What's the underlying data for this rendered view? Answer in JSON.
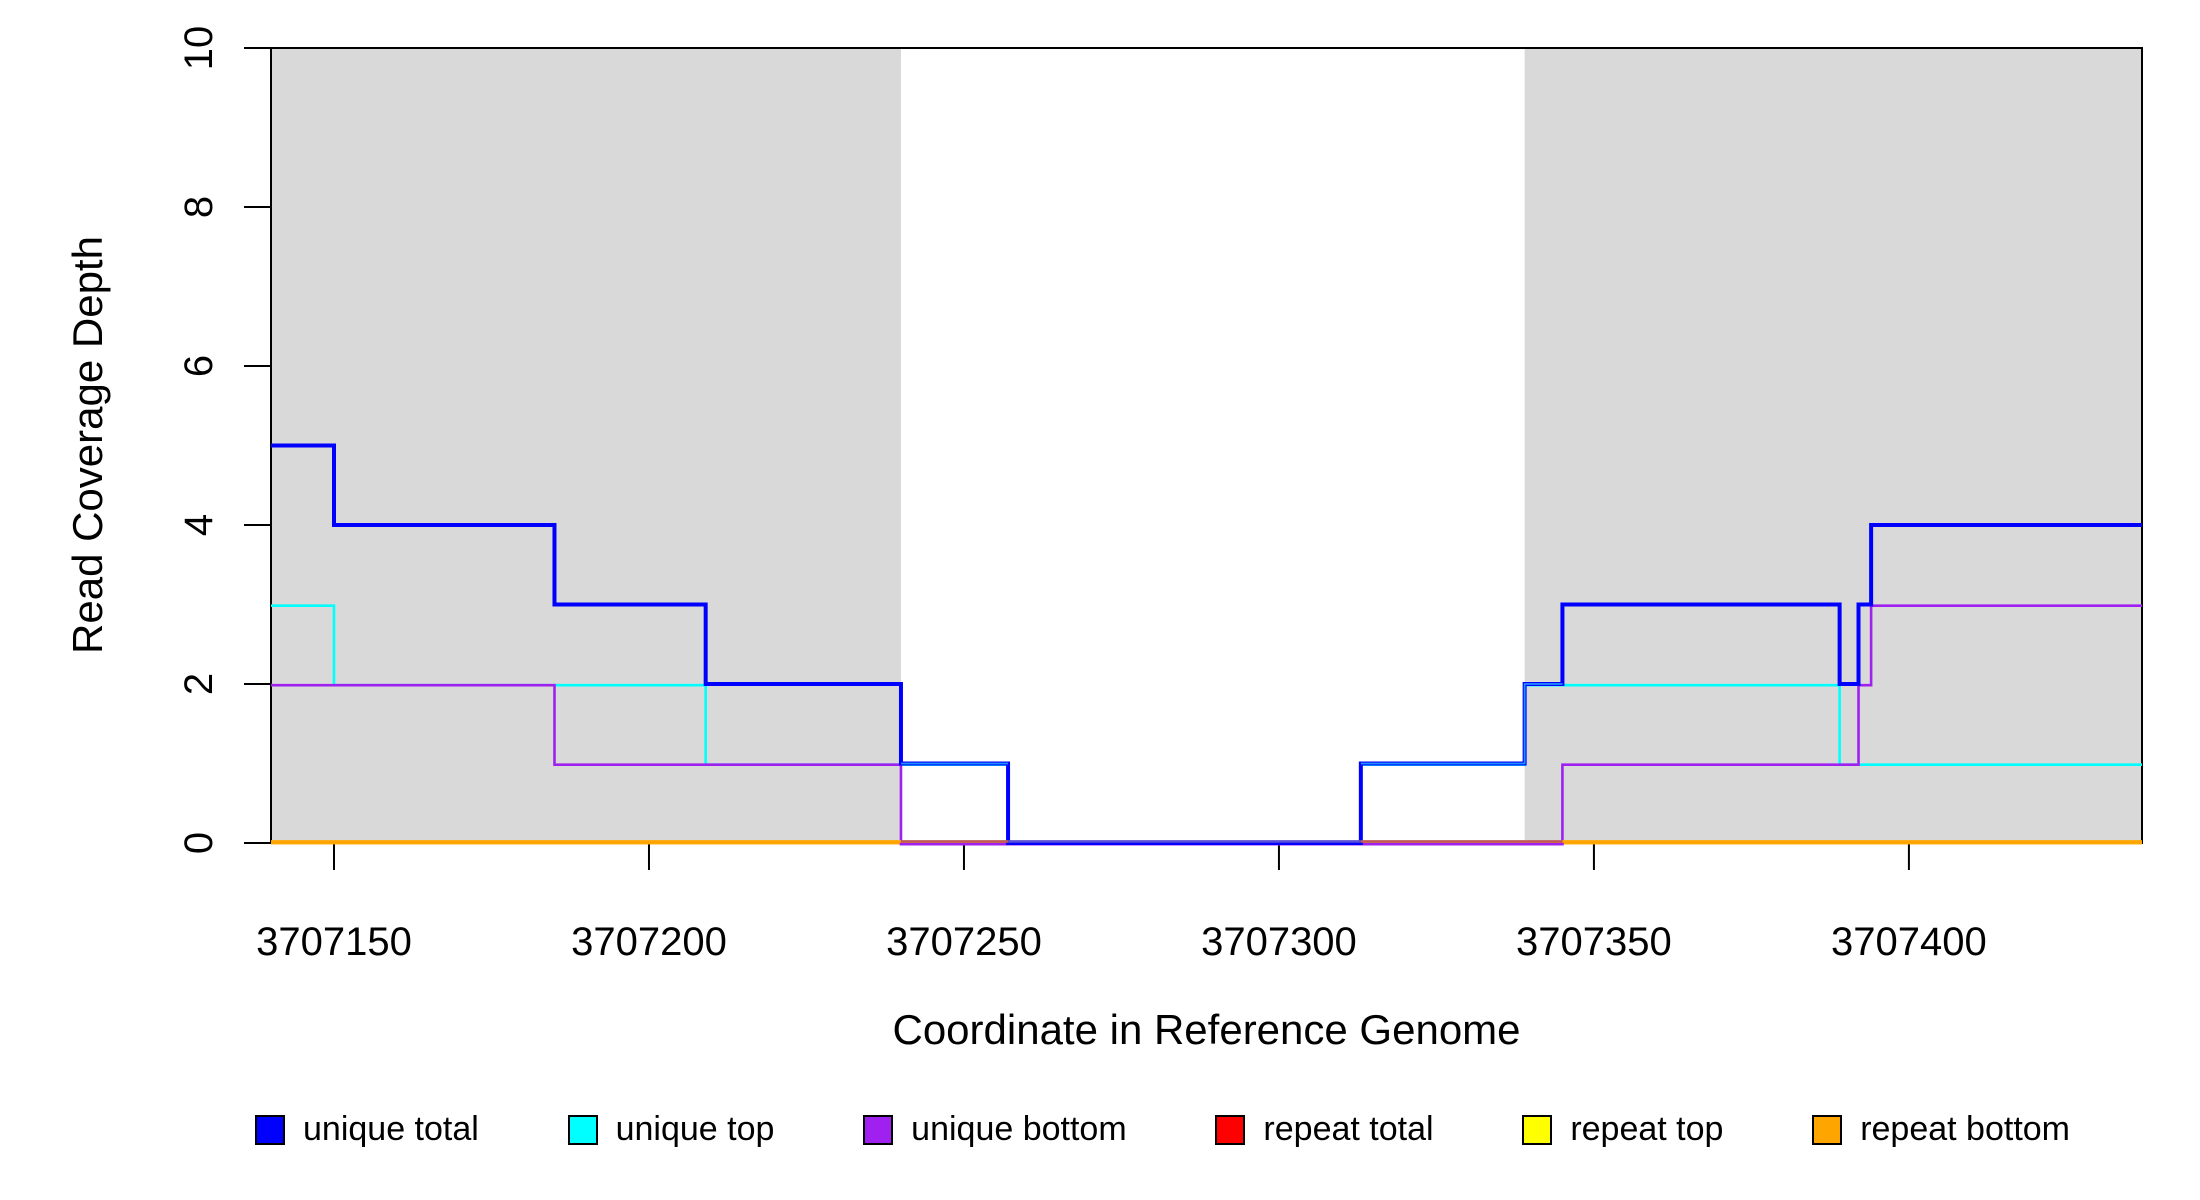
{
  "figure": {
    "xlabel": "Coordinate in Reference Genome",
    "ylabel": "Read Coverage Depth"
  },
  "chart_data": {
    "type": "line",
    "subtype": "step",
    "title": "",
    "xlabel": "Coordinate in Reference Genome",
    "ylabel": "Read Coverage Depth",
    "xlim": [
      3707140,
      3707437
    ],
    "ylim": [
      0,
      10
    ],
    "x_ticks": [
      3707150,
      3707200,
      3707250,
      3707300,
      3707350,
      3707400
    ],
    "y_ticks": [
      0,
      2,
      4,
      6,
      8,
      10
    ],
    "grid": false,
    "background_color": "#FFFFFF",
    "shade_color": "#D9D9D9",
    "shaded_regions": [
      {
        "from": 3707140,
        "to": 3707240
      },
      {
        "from": 3707339,
        "to": 3707437
      }
    ],
    "series": [
      {
        "name": "repeat total",
        "color": "#FF0000",
        "width": 2.6,
        "steps": [
          [
            3707140,
            0
          ]
        ]
      },
      {
        "name": "repeat top",
        "color": "#FFFF00",
        "width": 2.6,
        "steps": [
          [
            3707140,
            0
          ]
        ]
      },
      {
        "name": "repeat bottom",
        "color": "#FFA500",
        "width": 2.6,
        "steps": [
          [
            3707140,
            0
          ]
        ]
      },
      {
        "name": "unique top",
        "color": "#00FFFF",
        "width": 2.6,
        "steps": [
          [
            3707140,
            3
          ],
          [
            3707150,
            2
          ],
          [
            3707209,
            1
          ],
          [
            3707257,
            0
          ],
          [
            3707313,
            1
          ],
          [
            3707339,
            2
          ],
          [
            3707389,
            1
          ]
        ]
      },
      {
        "name": "unique bottom",
        "color": "#A020F0",
        "width": 2.6,
        "steps": [
          [
            3707140,
            2
          ],
          [
            3707185,
            1
          ],
          [
            3707240,
            0
          ],
          [
            3707345,
            1
          ],
          [
            3707392,
            2
          ],
          [
            3707394,
            3
          ]
        ]
      },
      {
        "name": "unique total",
        "color": "#0000FF",
        "width": 4,
        "steps": [
          [
            3707140,
            5
          ],
          [
            3707150,
            4
          ],
          [
            3707185,
            3
          ],
          [
            3707209,
            2
          ],
          [
            3707240,
            1
          ],
          [
            3707257,
            0
          ],
          [
            3707313,
            1
          ],
          [
            3707339,
            2
          ],
          [
            3707345,
            3
          ],
          [
            3707389,
            2
          ],
          [
            3707392,
            3
          ],
          [
            3707394,
            4
          ]
        ]
      }
    ],
    "overlap_highlight_color": "#1E90FF",
    "baseline_overlay": [
      {
        "from": 3707140,
        "to": 3707240,
        "color": "#FFA500"
      },
      {
        "from": 3707240,
        "to": 3707257,
        "color": "#C05A5A"
      },
      {
        "from": 3707257,
        "to": 3707313,
        "color": "#5B50D5"
      },
      {
        "from": 3707313,
        "to": 3707345,
        "color": "#C05A5A"
      },
      {
        "from": 3707345,
        "to": 3707437,
        "color": "#FFA500"
      }
    ],
    "legend": {
      "position": "bottom",
      "entries": [
        {
          "label": "unique total",
          "color": "#0000FF"
        },
        {
          "label": "unique top",
          "color": "#00FFFF"
        },
        {
          "label": "unique bottom",
          "color": "#A020F0"
        },
        {
          "label": "repeat total",
          "color": "#FF0000"
        },
        {
          "label": "repeat top",
          "color": "#FFFF00"
        },
        {
          "label": "repeat bottom",
          "color": "#FFA500"
        }
      ]
    }
  }
}
